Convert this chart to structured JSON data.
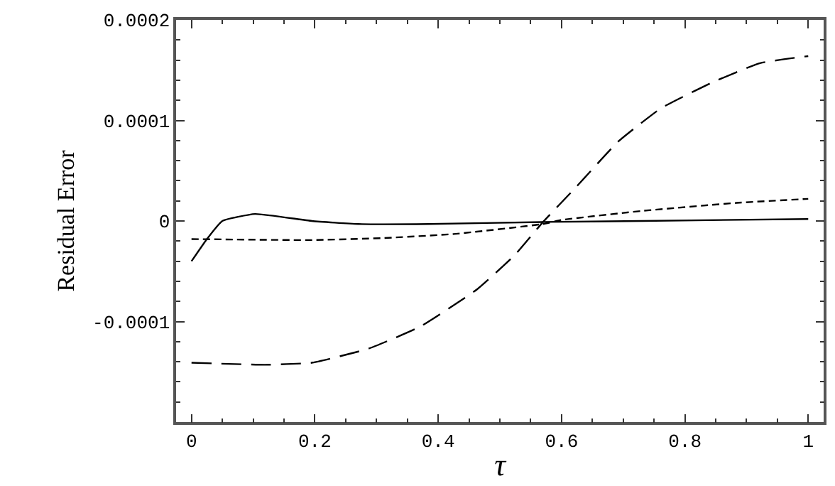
{
  "chart_data": {
    "type": "line",
    "xlabel": "τ",
    "ylabel": "Residual Error",
    "xlim": [
      -0.025,
      1.025
    ],
    "ylim": [
      -0.0002,
      0.0002
    ],
    "xticks": [
      0,
      0.2,
      0.4,
      0.6,
      0.8,
      1
    ],
    "yticks": [
      -0.0001,
      0,
      0.0001,
      0.0002
    ],
    "series": [
      {
        "color": "#000000",
        "line_style": "solid",
        "x": [
          0,
          0.025,
          0.05,
          0.103,
          0.195,
          0.27,
          0.386,
          0.57,
          0.73,
          1
        ],
        "values": [
          -4e-05,
          -1.8e-05,
          0,
          7e-06,
          0,
          -3e-06,
          -3e-06,
          -1e-06,
          0,
          2e-06
        ]
      },
      {
        "color": "#000000",
        "line_style": "dotted",
        "x": [
          0,
          0.195,
          0.31,
          0.425,
          0.57,
          0.6,
          0.73,
          0.884,
          1
        ],
        "values": [
          -1.8e-05,
          -1.9e-05,
          -1.7e-05,
          -1.3e-05,
          -3e-06,
          1e-06,
          1e-05,
          1.8e-05,
          2.2e-05
        ]
      },
      {
        "color": "#000000",
        "line_style": "dashed",
        "x": [
          0,
          0.119,
          0.195,
          0.287,
          0.371,
          0.463,
          0.524,
          0.57,
          0.624,
          0.692,
          0.761,
          0.845,
          0.922,
          1
        ],
        "values": [
          -0.000141,
          -0.000143,
          -0.000141,
          -0.000127,
          -0.000105,
          -6.8e-05,
          -3.4e-05,
          -1e-06,
          3.4e-05,
          7.9e-05,
          0.000112,
          0.000138,
          0.000157,
          0.000164
        ]
      }
    ]
  }
}
